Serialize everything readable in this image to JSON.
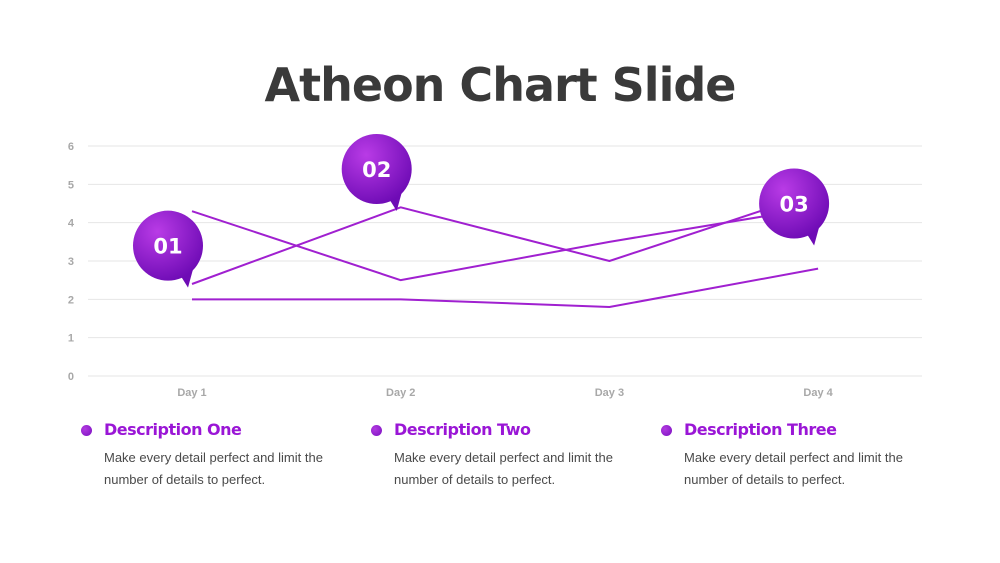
{
  "slide": {
    "title": "Atheon Chart Slide"
  },
  "colors": {
    "accent": "#a020d0",
    "accent_dark": "#7a0fc0",
    "title": "#3a3a3a",
    "grid": "#e6e6e6",
    "tick": "#a8a8a8"
  },
  "chart_data": {
    "type": "line",
    "categories": [
      "Day 1",
      "Day 2",
      "Day 3",
      "Day 4"
    ],
    "ylim": [
      0,
      6
    ],
    "yticks": [
      "0",
      "1",
      "2",
      "3",
      "4",
      "5",
      "6"
    ],
    "grid": true,
    "series": [
      {
        "values": [
          2.4,
          4.4,
          3.0,
          4.8
        ]
      },
      {
        "values": [
          4.3,
          2.5,
          3.5,
          4.4
        ]
      },
      {
        "values": [
          2.0,
          2.0,
          1.8,
          2.8
        ]
      }
    ],
    "markers": [
      {
        "label": "01",
        "category": "Day 1",
        "value": 3.4
      },
      {
        "label": "02",
        "category": "Day 2",
        "value": 5.4
      },
      {
        "label": "03",
        "category": "Day 4",
        "value": 4.5
      }
    ]
  },
  "descriptions": [
    {
      "heading": "Description One",
      "text": "Make every detail perfect and limit the number of details to perfect."
    },
    {
      "heading": "Description Two",
      "text": "Make every detail perfect and limit the number of details to perfect."
    },
    {
      "heading": "Description Three",
      "text": "Make every detail perfect and limit the number of details to perfect."
    }
  ]
}
